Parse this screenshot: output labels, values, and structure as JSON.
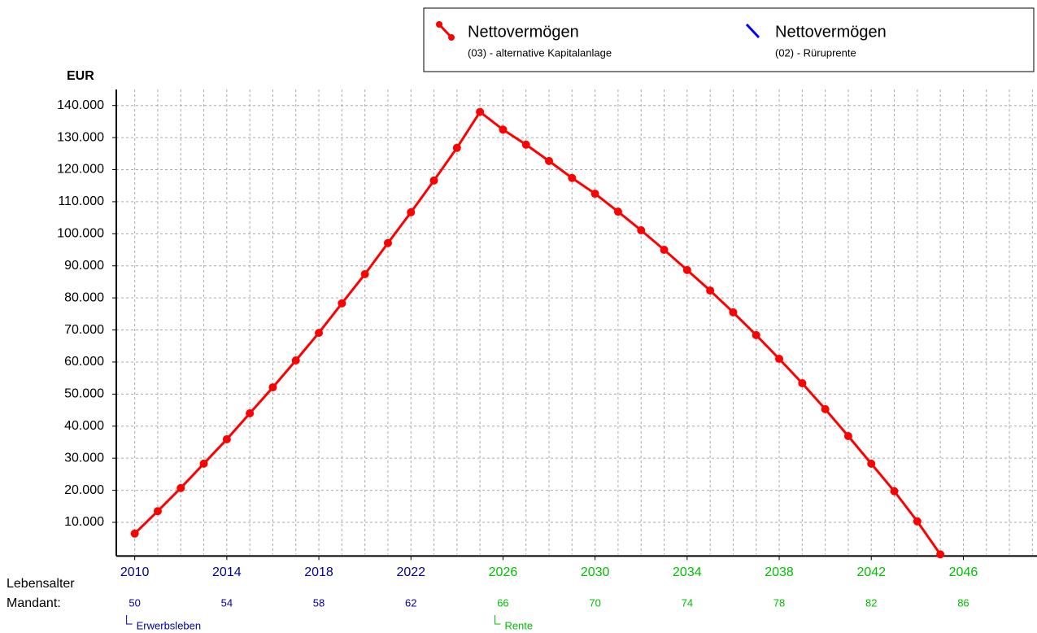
{
  "chart_data": {
    "type": "line",
    "y_label": "EUR",
    "x": [
      2010,
      2011,
      2012,
      2013,
      2014,
      2015,
      2016,
      2017,
      2018,
      2019,
      2020,
      2021,
      2022,
      2023,
      2024,
      2025,
      2026,
      2027,
      2028,
      2029,
      2030,
      2031,
      2032,
      2033,
      2034,
      2035,
      2036,
      2037,
      2038,
      2039,
      2040,
      2041,
      2042,
      2043,
      2044,
      2045
    ],
    "series": [
      {
        "name": "Nettovermögen",
        "description": "(03) - alternative Kapitalanlage",
        "color": "#ff0000",
        "values": [
          6500,
          13500,
          20700,
          28300,
          35900,
          44000,
          52100,
          60500,
          69100,
          78300,
          87400,
          97100,
          106700,
          116600,
          126800,
          138000,
          132500,
          127800,
          122700,
          117400,
          112500,
          106900,
          101100,
          95000,
          88700,
          82300,
          75500,
          68400,
          61000,
          53400,
          45300,
          36900,
          28300,
          19700,
          10300,
          0
        ]
      },
      {
        "name": "Nettovermögen",
        "description": "(02) - Rüruprente",
        "color": "#0000ff"
      }
    ],
    "xlim": [
      2009.2,
      2049.2
    ],
    "xticks": [
      2010,
      2014,
      2018,
      2022,
      2026,
      2030,
      2034,
      2038,
      2042,
      2046
    ],
    "xtick_colors": [
      "#0000a0",
      "#0000a0",
      "#0000a0",
      "#0000a0",
      "#00c000",
      "#00c000",
      "#00c000",
      "#00c000",
      "#00c000",
      "#00c000"
    ],
    "age_title": [
      "Lebensalter",
      "Mandant:"
    ],
    "age_labels": [
      50,
      54,
      58,
      62,
      66,
      70,
      74,
      78,
      82,
      86
    ],
    "phase_labels": [
      {
        "text": "Erwerbsleben",
        "at": 2010,
        "color": "#0000a0"
      },
      {
        "text": "Rente",
        "at": 2026,
        "color": "#00c000"
      }
    ],
    "ylim": [
      0,
      145000
    ],
    "yticks": [
      {
        "value": 10000,
        "label": "10.000"
      },
      {
        "value": 20000,
        "label": "20.000"
      },
      {
        "value": 30000,
        "label": "30.000"
      },
      {
        "value": 40000,
        "label": "40.000"
      },
      {
        "value": 50000,
        "label": "50.000"
      },
      {
        "value": 60000,
        "label": "60.000"
      },
      {
        "value": 70000,
        "label": "70.000"
      },
      {
        "value": 80000,
        "label": "80.000"
      },
      {
        "value": 90000,
        "label": "90.000"
      },
      {
        "value": 100000,
        "label": "100.000"
      },
      {
        "value": 110000,
        "label": "110.000"
      },
      {
        "value": 120000,
        "label": "120.000"
      },
      {
        "value": 130000,
        "label": "130.000"
      },
      {
        "value": 140000,
        "label": "140.000"
      }
    ],
    "grid": true
  }
}
